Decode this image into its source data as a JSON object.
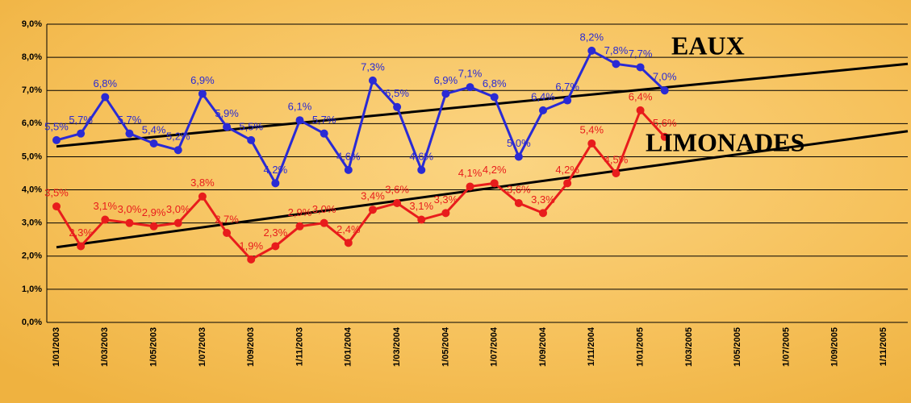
{
  "chart_data": {
    "type": "line",
    "categories": [
      "1/01/2003",
      null,
      "1/03/2003",
      null,
      "1/05/2003",
      null,
      "1/07/2003",
      null,
      "1/09/2003",
      null,
      "1/11/2003",
      null,
      "1/01/2004",
      null,
      "1/03/2004",
      null,
      "1/05/2004",
      null,
      "1/07/2004",
      null,
      "1/09/2004",
      null,
      "1/11/2004",
      null,
      "1/01/2005",
      null,
      "1/03/2005",
      null,
      "1/05/2005",
      null,
      "1/07/2005",
      null,
      "1/09/2005",
      null,
      "1/11/2005",
      null
    ],
    "series": [
      {
        "name": "EAUX",
        "color": "#2a2ad4",
        "trendline": true,
        "values": [
          5.5,
          5.7,
          6.8,
          5.7,
          5.4,
          5.2,
          6.9,
          5.9,
          5.5,
          4.2,
          6.1,
          5.7,
          4.6,
          7.3,
          6.5,
          4.6,
          6.9,
          7.1,
          6.8,
          5.0,
          6.4,
          6.7,
          8.2,
          7.8,
          7.7,
          7.0,
          null,
          null,
          null,
          null,
          null,
          null,
          null,
          null,
          null,
          null
        ],
        "value_labels": [
          "5,5%",
          "5,7%",
          "6,8%",
          "5,7%",
          "5,4%",
          "5,2%",
          "6,9%",
          "5,9%",
          "5,5%",
          "4,2%",
          "6,1%",
          "5,7%",
          "4,6%",
          "7,3%",
          "6,5%",
          "4,6%",
          "6,9%",
          "7,1%",
          "6,8%",
          "5,0%",
          "6,4%",
          "6,7%",
          "8,2%",
          "7,8%",
          "7,7%",
          "7,0%",
          null,
          null,
          null,
          null,
          null,
          null,
          null,
          null,
          null,
          null
        ]
      },
      {
        "name": "LIMONADES",
        "color": "#e81c1c",
        "trendline": true,
        "values": [
          3.5,
          2.3,
          3.1,
          3.0,
          2.9,
          3.0,
          3.8,
          2.7,
          1.9,
          2.3,
          2.9,
          3.0,
          2.4,
          3.4,
          3.6,
          3.1,
          3.3,
          4.1,
          4.2,
          3.6,
          3.3,
          4.2,
          5.4,
          4.5,
          6.4,
          5.6,
          null,
          null,
          null,
          null,
          null,
          null,
          null,
          null,
          null,
          null
        ],
        "value_labels": [
          "3,5%",
          "2,3%",
          "3,1%",
          "3,0%",
          "2,9%",
          "3,0%",
          "3,8%",
          "2,7%",
          "1,9%",
          "2,3%",
          "2,9%",
          "3,0%",
          "2,4%",
          "3,4%",
          "3,6%",
          "3,1%",
          "3,3%",
          "4,1%",
          "4,2%",
          "3,6%",
          "3,3%",
          "4,2%",
          "5,4%",
          "4,5%",
          "6,4%",
          "5,6%",
          null,
          null,
          null,
          null,
          null,
          null,
          null,
          null,
          null,
          null
        ]
      }
    ],
    "ylim": [
      0,
      9
    ],
    "yticks": [
      {
        "value": 0,
        "label": "0,0%"
      },
      {
        "value": 1,
        "label": "1,0%"
      },
      {
        "value": 2,
        "label": "2,0%"
      },
      {
        "value": 3,
        "label": "3,0%"
      },
      {
        "value": 4,
        "label": "4,0%"
      },
      {
        "value": 5,
        "label": "5,0%"
      },
      {
        "value": 6,
        "label": "6,0%"
      },
      {
        "value": 7,
        "label": "7,0%"
      },
      {
        "value": 8,
        "label": "8,0%"
      },
      {
        "value": 9,
        "label": "9,0%"
      }
    ],
    "grid": true,
    "annotations": [
      "EAUX",
      "LIMONADES"
    ]
  }
}
